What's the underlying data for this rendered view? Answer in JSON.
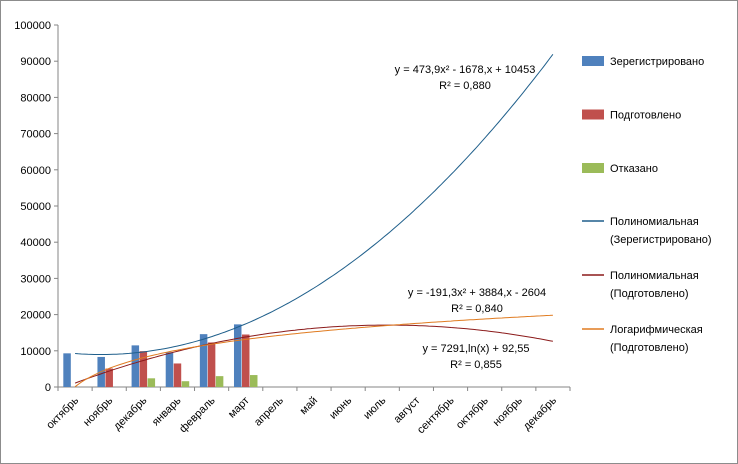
{
  "chart_data": {
    "type": "bar",
    "categories": [
      "октябрь",
      "ноябрь",
      "декабрь",
      "январь",
      "февраль",
      "март",
      "апрель",
      "май",
      "июнь",
      "июль",
      "август",
      "сентябрь",
      "октябрь",
      "ноябрь",
      "декабрь"
    ],
    "ylim": [
      0,
      100000
    ],
    "yticks": [
      "0",
      "10000",
      "20000",
      "30000",
      "40000",
      "50000",
      "60000",
      "70000",
      "80000",
      "90000",
      "100000"
    ],
    "grid": false,
    "legend_position": "right",
    "series": [
      {
        "name": "Зерегистрировано",
        "color": "#4f81bd",
        "values": [
          9300,
          8300,
          11500,
          9600,
          14600,
          17300,
          null,
          null,
          null,
          null,
          null,
          null,
          null,
          null,
          null
        ]
      },
      {
        "name": "Подготовлено",
        "color": "#c0504d",
        "values": [
          0,
          5100,
          9900,
          6500,
          12300,
          14500,
          null,
          null,
          null,
          null,
          null,
          null,
          null,
          null,
          null
        ]
      },
      {
        "name": "Отказано",
        "color": "#9bbb59",
        "values": [
          0,
          0,
          2400,
          1600,
          3000,
          3300,
          null,
          null,
          null,
          null,
          null,
          null,
          null,
          null,
          null
        ]
      }
    ],
    "trendlines": [
      {
        "legend_lines": [
          "Полиномиальная",
          "(Зерегистрировано)"
        ],
        "color": "#1f5f8b",
        "kind": "poly",
        "coef": [
          473.9,
          -1678,
          10453
        ],
        "equation": "y = 473,9x² - 1678,x + 10453",
        "r2": "R² = 0,880"
      },
      {
        "legend_lines": [
          "Полиномиальная",
          "(Подготовлено)"
        ],
        "color": "#8b1a1a",
        "kind": "poly",
        "coef": [
          -191.3,
          3884,
          -2604
        ],
        "equation": "y = -191,3x² + 3884,x - 2604",
        "r2": "R² = 0,840"
      },
      {
        "legend_lines": [
          "Логарифмическая",
          "(Подготовлено)"
        ],
        "color": "#e07b20",
        "kind": "log",
        "coef": [
          7291,
          92.55
        ],
        "equation": "y = 7291,ln(x) + 92,55",
        "r2": "R² = 0,855"
      }
    ]
  }
}
